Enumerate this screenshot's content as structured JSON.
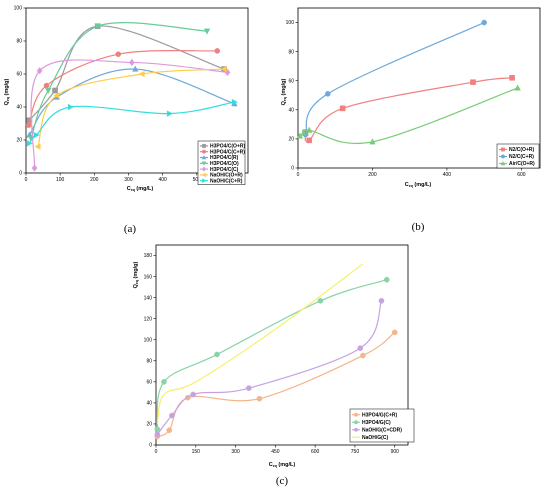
{
  "chart_data": [
    {
      "type": "line",
      "panel": "(a)",
      "xlabel": "Ceq (mg/L)",
      "ylabel": "Qeq (mg/g)",
      "xlim": [
        0,
        650
      ],
      "ylim": [
        0,
        100
      ],
      "xticks": [
        0,
        100,
        200,
        300,
        400,
        500,
        600
      ],
      "yticks": [
        0,
        20,
        40,
        60,
        80,
        100
      ],
      "legend_position": "lower-right",
      "series": [
        {
          "name": "H3PO4/C(O+R)",
          "color": "#9b9b9b",
          "marker": "square",
          "points": [
            [
              10,
              32
            ],
            [
              85,
              50
            ],
            [
              210,
              89
            ],
            [
              580,
              63
            ]
          ]
        },
        {
          "name": "H3PO4/C(C+R)",
          "color": "#f08080",
          "marker": "circle",
          "points": [
            [
              8,
              29
            ],
            [
              60,
              53
            ],
            [
              270,
              72
            ],
            [
              560,
              74
            ]
          ]
        },
        {
          "name": "H3PO4/C(R)",
          "color": "#6fa8dc",
          "marker": "triangle",
          "points": [
            [
              10,
              23
            ],
            [
              90,
              46
            ],
            [
              320,
              63
            ],
            [
              610,
              42
            ]
          ]
        },
        {
          "name": "H3PO4/C(O)",
          "color": "#66cc99",
          "marker": "triangle-down",
          "points": [
            [
              15,
              21
            ],
            [
              65,
              50
            ],
            [
              210,
              89
            ],
            [
              530,
              86
            ]
          ]
        },
        {
          "name": "H3PO4/C(C)",
          "color": "#dd99dd",
          "marker": "diamond",
          "points": [
            [
              25,
              3
            ],
            [
              40,
              62
            ],
            [
              310,
              67
            ],
            [
              590,
              61
            ]
          ]
        },
        {
          "name": "NaOH/C(O+R)",
          "color": "#ffcc44",
          "marker": "triangle-left",
          "points": [
            [
              35,
              16
            ],
            [
              90,
              47
            ],
            [
              340,
              60
            ],
            [
              580,
              63
            ]
          ]
        },
        {
          "name": "NaOH/C(C+R)",
          "color": "#33dddd",
          "marker": "triangle-right",
          "points": [
            [
              10,
              18
            ],
            [
              30,
              23
            ],
            [
              130,
              40
            ],
            [
              420,
              36
            ],
            [
              610,
              43
            ]
          ]
        }
      ]
    },
    {
      "type": "line",
      "panel": "(b)",
      "xlabel": "Ceq (mg/L)",
      "ylabel": "Qeq (mg/g)",
      "xlim": [
        0,
        650
      ],
      "ylim": [
        0,
        110
      ],
      "xticks": [
        0,
        200,
        400,
        600
      ],
      "yticks": [
        0,
        20,
        40,
        60,
        80,
        100
      ],
      "legend_position": "lower-right",
      "series": [
        {
          "name": "N2/C(O+R)",
          "color": "#f08080",
          "marker": "square",
          "points": [
            [
              20,
              24
            ],
            [
              30,
              19
            ],
            [
              120,
              41
            ],
            [
              470,
              59
            ],
            [
              575,
              62
            ]
          ]
        },
        {
          "name": "N2/C(C+R)",
          "color": "#6fa8dc",
          "marker": "circle",
          "points": [
            [
              20,
              23
            ],
            [
              80,
              51
            ],
            [
              500,
              100
            ]
          ]
        },
        {
          "name": "Air/C(O+R)",
          "color": "#77cc77",
          "marker": "triangle",
          "points": [
            [
              5,
              22
            ],
            [
              15,
              24
            ],
            [
              30,
              26
            ],
            [
              200,
              18
            ],
            [
              590,
              55
            ]
          ]
        }
      ]
    },
    {
      "type": "line",
      "panel": "(c)",
      "xlabel": "Ceq (mg/L)",
      "ylabel": "Qeq (mg/g)",
      "xlim": [
        0,
        950
      ],
      "ylim": [
        0,
        190
      ],
      "xticks": [
        0,
        150,
        300,
        450,
        600,
        750,
        900
      ],
      "yticks": [
        0,
        20,
        40,
        60,
        80,
        100,
        120,
        140,
        160,
        180
      ],
      "legend_position": "lower-left",
      "series": [
        {
          "name": "H3PO4/G(C+R)",
          "color": "#f5b58c",
          "marker": "circle",
          "points": [
            [
              5,
              8
            ],
            [
              50,
              14
            ],
            [
              120,
              45
            ],
            [
              390,
              44
            ],
            [
              780,
              85
            ],
            [
              900,
              107
            ]
          ]
        },
        {
          "name": "H3PO4/G(C)",
          "color": "#88d4a8",
          "marker": "circle",
          "points": [
            [
              5,
              15
            ],
            [
              30,
              60
            ],
            [
              230,
              86
            ],
            [
              620,
              137
            ],
            [
              870,
              157
            ]
          ]
        },
        {
          "name": "NaOH/G(C+CDR)",
          "color": "#c5a3e0",
          "marker": "circle",
          "points": [
            [
              5,
              10
            ],
            [
              60,
              28
            ],
            [
              140,
              48
            ],
            [
              350,
              54
            ],
            [
              770,
              92
            ],
            [
              850,
              137
            ]
          ]
        },
        {
          "name": "NaOH/G(C)",
          "color": "#f5f06a",
          "marker": "none",
          "points": [
            [
              5,
              20
            ],
            [
              30,
              48
            ],
            [
              150,
              60
            ],
            [
              450,
              110
            ],
            [
              780,
              172
            ]
          ]
        }
      ]
    }
  ],
  "panel_labels": {
    "a": "(a)",
    "b": "(b)",
    "c": "(c)"
  },
  "axes": {
    "a": {
      "y_label": "Q",
      "y_sub": "eq",
      "y_unit": " (mg/g)",
      "x_label": "C",
      "x_sub": "eq",
      "x_unit": " (mg/L)"
    },
    "b": {
      "y_label": "Q",
      "y_sub": "eq",
      "y_unit": " (mg/g)",
      "x_label": "C",
      "x_sub": "eq",
      "x_unit": " (mg/L)"
    },
    "c": {
      "y_label": "Q",
      "y_sub": "eq",
      "y_unit": " (mg/g)",
      "x_label": "C",
      "x_sub": "eq",
      "x_unit": " (mg/L)"
    }
  }
}
